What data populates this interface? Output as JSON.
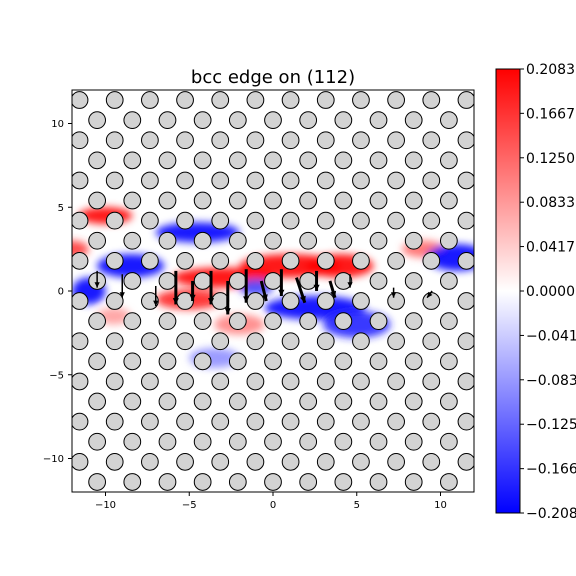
{
  "chart_data": {
    "type": "heatmap",
    "title": "bcc edge on (112)",
    "xlabel": "",
    "ylabel": "",
    "xlim": [
      -12,
      12
    ],
    "ylim": [
      -12,
      12
    ],
    "x_ticks": [
      -10,
      -5,
      0,
      5,
      10
    ],
    "y_ticks": [
      -10,
      -5,
      0,
      5,
      10
    ],
    "x_tick_labels": [
      "−10",
      "−5",
      "0",
      "5",
      "10"
    ],
    "y_tick_labels": [
      "−10",
      "−5",
      "0",
      "5",
      "10"
    ],
    "colormap": "bwr",
    "colorbar": {
      "min": -0.2083,
      "max": 0.2083,
      "ticks": [
        0.2083,
        0.1667,
        0.125,
        0.0833,
        0.0417,
        0.0,
        -0.0417,
        -0.0833,
        -0.125,
        -0.1667,
        -0.2083
      ],
      "tick_labels": [
        "0.2083",
        "0.1667",
        "0.1250",
        "0.0833",
        "0.0417",
        "0.0000",
        "−0.0417",
        "−0.0833",
        "−0.1250",
        "−0.1667",
        "−0.2083"
      ]
    },
    "atom_lattice": {
      "spacing_x": 2.1,
      "spacing_y": 1.2,
      "row_offset_x": 1.05,
      "atom_radius": 0.5
    },
    "strain_blobs": [
      {
        "x": 1.0,
        "y": 1.5,
        "sx": 3.0,
        "sy": 0.7,
        "v": 0.2083
      },
      {
        "x": 4.0,
        "y": 1.5,
        "sx": 2.0,
        "sy": 0.7,
        "v": 0.2083
      },
      {
        "x": -3.0,
        "y": 0.8,
        "sx": 3.0,
        "sy": 0.6,
        "v": 0.2083
      },
      {
        "x": -5.0,
        "y": -0.5,
        "sx": 2.0,
        "sy": 0.6,
        "v": 0.18
      },
      {
        "x": -10.0,
        "y": 4.5,
        "sx": 1.6,
        "sy": 0.5,
        "v": 0.2083
      },
      {
        "x": -12.0,
        "y": 2.5,
        "sx": 1.0,
        "sy": 0.5,
        "v": 0.16
      },
      {
        "x": 9.0,
        "y": 2.5,
        "sx": 1.3,
        "sy": 0.5,
        "v": 0.12
      },
      {
        "x": -2.0,
        "y": -2.0,
        "sx": 1.5,
        "sy": 0.6,
        "v": 0.1
      },
      {
        "x": 2.5,
        "y": -1.0,
        "sx": 3.0,
        "sy": 0.7,
        "v": -0.2083
      },
      {
        "x": 5.0,
        "y": -2.0,
        "sx": 2.0,
        "sy": 0.8,
        "v": -0.18
      },
      {
        "x": -4.5,
        "y": 3.5,
        "sx": 2.5,
        "sy": 0.6,
        "v": -0.2083
      },
      {
        "x": -8.5,
        "y": 1.5,
        "sx": 2.0,
        "sy": 0.7,
        "v": -0.2083
      },
      {
        "x": -11.0,
        "y": 0.0,
        "sx": 1.0,
        "sy": 0.8,
        "v": -0.2083
      },
      {
        "x": 11.0,
        "y": 2.0,
        "sx": 1.8,
        "sy": 0.8,
        "v": -0.2083
      },
      {
        "x": -1.0,
        "y": 0.2,
        "sx": 1.0,
        "sy": 0.5,
        "v": -0.15
      },
      {
        "x": -3.5,
        "y": -4.0,
        "sx": 1.5,
        "sy": 0.6,
        "v": -0.09
      },
      {
        "x": -9.5,
        "y": -1.5,
        "sx": 1.0,
        "sy": 0.5,
        "v": 0.08
      }
    ],
    "displacement_arrows": [
      {
        "x": -10.5,
        "y": 1.2,
        "dx": 0.0,
        "dy": -1.0,
        "w": 1
      },
      {
        "x": -9.0,
        "y": 1.0,
        "dx": 0.0,
        "dy": -1.4,
        "w": 1
      },
      {
        "x": -7.0,
        "y": 0.3,
        "dx": 0.0,
        "dy": -1.2,
        "w": 1
      },
      {
        "x": -5.8,
        "y": 1.2,
        "dx": 0.0,
        "dy": -2.0,
        "w": 2
      },
      {
        "x": -3.7,
        "y": 1.2,
        "dx": 0.0,
        "dy": -2.0,
        "w": 2
      },
      {
        "x": -1.6,
        "y": 1.3,
        "dx": 0.0,
        "dy": -2.0,
        "w": 2
      },
      {
        "x": 0.5,
        "y": 1.3,
        "dx": 0.0,
        "dy": -1.6,
        "w": 2
      },
      {
        "x": 2.6,
        "y": 1.2,
        "dx": 0.0,
        "dy": -1.2,
        "w": 2
      },
      {
        "x": 4.6,
        "y": 1.0,
        "dx": 0.0,
        "dy": -0.8,
        "w": 1
      },
      {
        "x": -4.8,
        "y": 0.6,
        "dx": 0.0,
        "dy": -1.2,
        "w": 2
      },
      {
        "x": -2.7,
        "y": 0.6,
        "dx": 0.0,
        "dy": -2.0,
        "w": 2
      },
      {
        "x": -0.7,
        "y": 0.6,
        "dx": 0.3,
        "dy": -1.2,
        "w": 2
      },
      {
        "x": 1.4,
        "y": 0.8,
        "dx": 0.5,
        "dy": -1.5,
        "w": 2
      },
      {
        "x": 3.4,
        "y": 0.6,
        "dx": 0.3,
        "dy": -1.0,
        "w": 2
      },
      {
        "x": 7.2,
        "y": 0.2,
        "dx": 0.0,
        "dy": -0.6,
        "w": 1
      },
      {
        "x": 9.5,
        "y": 0.0,
        "dx": -0.3,
        "dy": -0.4,
        "w": 1
      }
    ]
  }
}
